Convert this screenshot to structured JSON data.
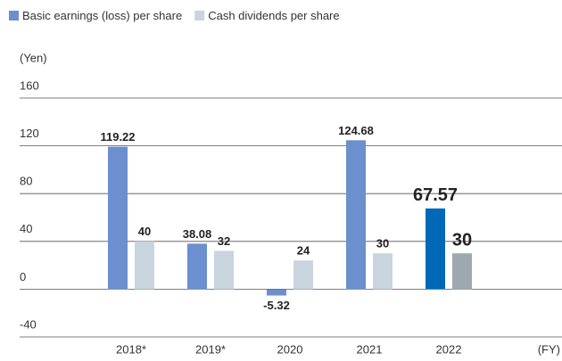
{
  "chart_data": {
    "type": "bar",
    "y_unit": "(Yen)",
    "x_unit": "(FY)",
    "categories": [
      "2018*",
      "2019*",
      "2020",
      "2021",
      "2022"
    ],
    "series": [
      {
        "name": "Basic earnings (loss) per share",
        "color": "#6b8fcf",
        "colors": [
          "#6b8fcf",
          "#6b8fcf",
          "#6b8fcf",
          "#6b8fcf",
          "#0068b7"
        ],
        "values": [
          119.22,
          38.08,
          -5.32,
          124.68,
          67.57
        ]
      },
      {
        "name": "Cash dividends per share",
        "color": "#c8d5de",
        "colors": [
          "#c8d5de",
          "#c8d5de",
          "#c8d5de",
          "#c8d5de",
          "#9ea8b0"
        ],
        "values": [
          40,
          32,
          24,
          30,
          30
        ]
      }
    ],
    "ylim": [
      -40,
      160
    ],
    "yticks": [
      -40,
      0,
      40,
      80,
      120,
      160
    ],
    "grid": true
  }
}
